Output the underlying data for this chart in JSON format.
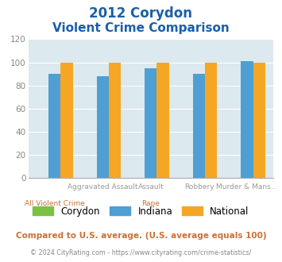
{
  "title_line1": "2012 Corydon",
  "title_line2": "Violent Crime Comparison",
  "corydon": [
    0,
    0,
    0,
    0,
    0
  ],
  "indiana": [
    90,
    88,
    95,
    90,
    101
  ],
  "national": [
    100,
    100,
    100,
    100,
    100
  ],
  "colors": {
    "corydon": "#7dc142",
    "indiana": "#4f9fd4",
    "national": "#f5a623"
  },
  "ylim": [
    0,
    120
  ],
  "yticks": [
    0,
    20,
    40,
    60,
    80,
    100,
    120
  ],
  "bg_color": "#dce9ee",
  "title_color": "#1a5fa8",
  "top_labels": [
    "",
    "Aggravated Assault",
    "Assault",
    "Robbery",
    "Murder & Mans..."
  ],
  "bottom_labels": [
    "All Violent Crime",
    "",
    "Rape",
    "",
    ""
  ],
  "top_label_color": "#999999",
  "bottom_label_color": "#c87137",
  "footnote1": "Compared to U.S. average. (U.S. average equals 100)",
  "footnote2": "© 2024 CityRating.com - https://www.cityrating.com/crime-statistics/",
  "footnote1_color": "#c87137",
  "footnote2_color": "#888888"
}
